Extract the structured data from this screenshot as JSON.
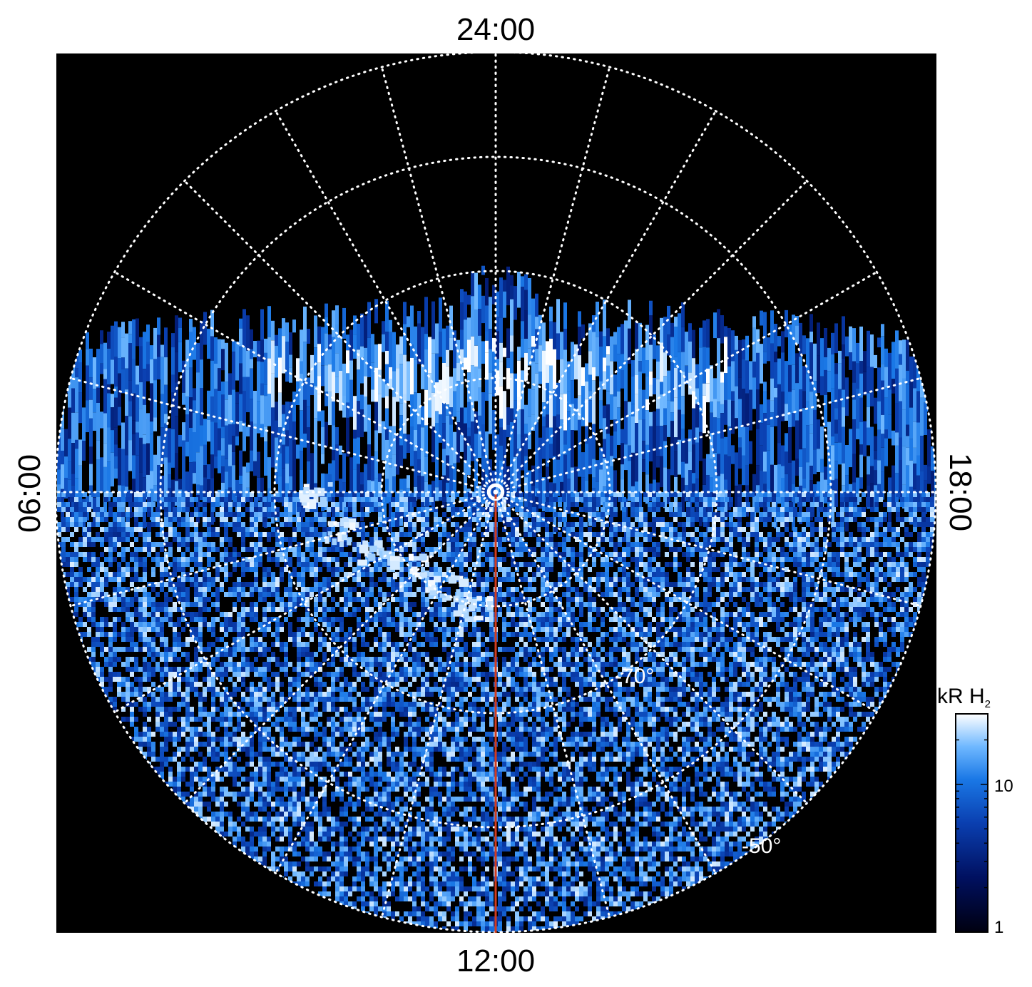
{
  "labels": {
    "top": "24:00",
    "bottom": "12:00",
    "left": "06:00",
    "right": "18:00",
    "lat_inner": "-70°",
    "lat_outer": "-50°"
  },
  "colorbar": {
    "unit_main": "kR H",
    "unit_sub": "2",
    "tick_high": "10",
    "tick_low": "1",
    "scale": "log",
    "range": [
      1,
      30
    ]
  },
  "colors": {
    "background": "#000000",
    "grid": "#ffffff",
    "meridian": "#d23c1e",
    "cmap": [
      "#000010",
      "#001060",
      "#0a3fb0",
      "#1a78e6",
      "#6fb8ff",
      "#ffffff"
    ]
  },
  "grid": {
    "latitude_circles_deg": [
      -50,
      -70
    ],
    "local_time_meridians": 24
  }
}
